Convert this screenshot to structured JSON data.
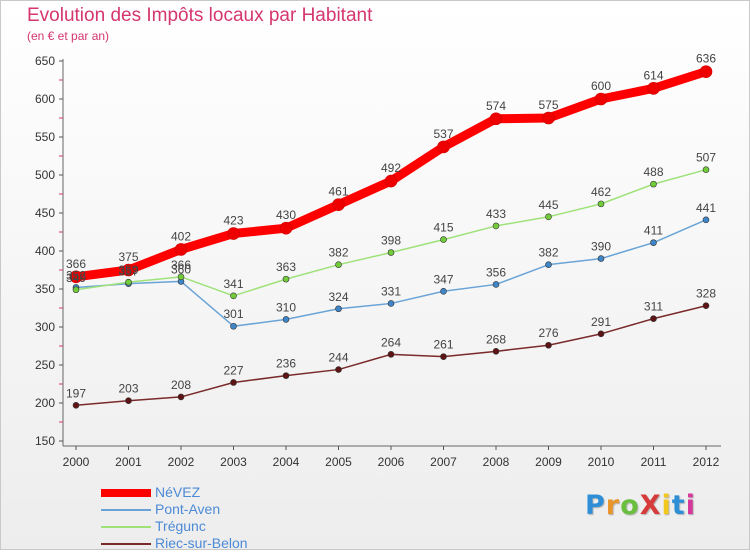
{
  "title": "Evolution des Impôts locaux par Habitant",
  "subtitle": "(en € et par an)",
  "logo": "ProXiti",
  "chart_data": {
    "type": "line",
    "title": "Evolution des Impôts locaux par Habitant",
    "subtitle": "(en € et par an)",
    "x": [
      2000,
      2001,
      2002,
      2003,
      2004,
      2005,
      2006,
      2007,
      2008,
      2009,
      2010,
      2011,
      2012
    ],
    "ylim": [
      150,
      650
    ],
    "yticks": [
      150,
      200,
      250,
      300,
      350,
      400,
      450,
      500,
      550,
      600,
      650
    ],
    "grid": false,
    "legend_position": "bottom-left",
    "series": [
      {
        "name": "NéVEZ",
        "color": "#ff0000",
        "marker": "#ee0000",
        "values": [
          366,
          375,
          402,
          423,
          430,
          461,
          492,
          537,
          574,
          575,
          600,
          614,
          636
        ]
      },
      {
        "name": "Pont-Aven",
        "color": "#6aa4d6",
        "marker": "#3e86c8",
        "values": [
          352,
          357,
          360,
          301,
          310,
          324,
          331,
          347,
          356,
          382,
          390,
          411,
          441
        ]
      },
      {
        "name": "Trégunc",
        "color": "#9fe27a",
        "marker": "#72cc3a",
        "values": [
          349,
          359,
          366,
          341,
          363,
          382,
          398,
          415,
          433,
          445,
          462,
          488,
          507
        ]
      },
      {
        "name": "Riec-sur-Belon",
        "color": "#7a2a2a",
        "marker": "#5e1414",
        "values": [
          197,
          203,
          208,
          227,
          236,
          244,
          264,
          261,
          268,
          276,
          291,
          311,
          328
        ]
      }
    ]
  }
}
